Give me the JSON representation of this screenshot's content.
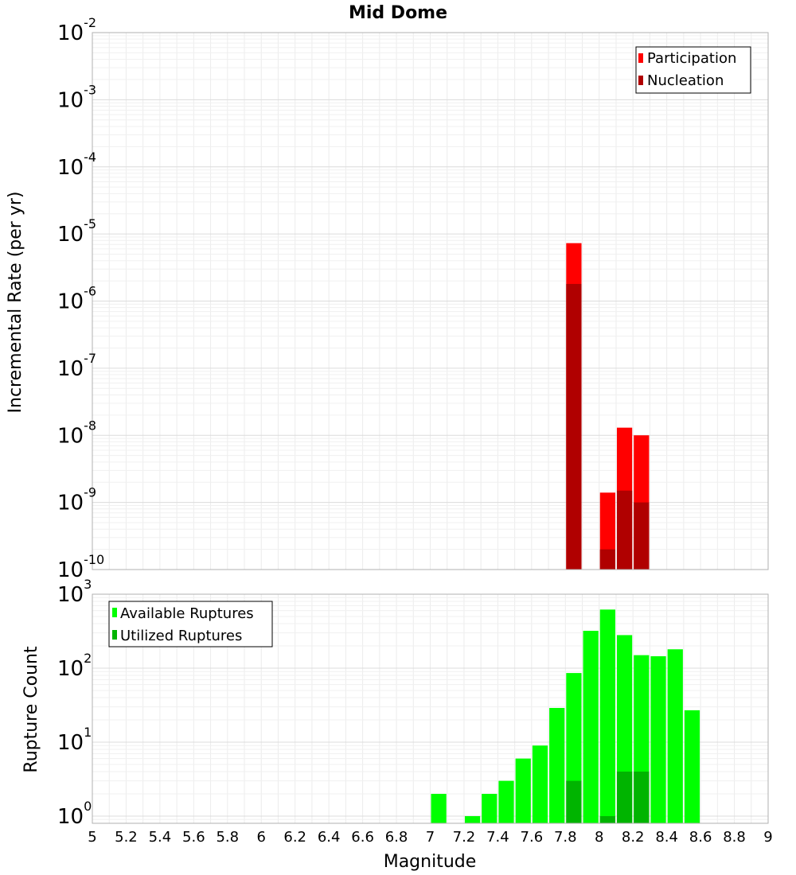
{
  "chart_data": [
    {
      "type": "bar",
      "title": "Mid Dome",
      "ylabel": "Incremental Rate (per yr)",
      "xlabel": "",
      "y_scale": "log",
      "ylim": [
        1e-10,
        0.01
      ],
      "xlim": [
        5,
        9
      ],
      "y_ticks": [
        {
          "base": "10",
          "exp": "-10"
        },
        {
          "base": "10",
          "exp": "-9"
        },
        {
          "base": "10",
          "exp": "-8"
        },
        {
          "base": "10",
          "exp": "-7"
        },
        {
          "base": "10",
          "exp": "-6"
        },
        {
          "base": "10",
          "exp": "-5"
        },
        {
          "base": "10",
          "exp": "-4"
        },
        {
          "base": "10",
          "exp": "-3"
        },
        {
          "base": "10",
          "exp": "-2"
        }
      ],
      "legend_position": "top-right",
      "grid": true,
      "series": [
        {
          "name": "Participation",
          "color": "#ff0000",
          "points": [
            {
              "x": 7.85,
              "y": 7.3e-06
            },
            {
              "x": 8.05,
              "y": 1.4e-09
            },
            {
              "x": 8.15,
              "y": 1.3e-08
            },
            {
              "x": 8.25,
              "y": 1e-08
            }
          ]
        },
        {
          "name": "Nucleation",
          "color": "#b00000",
          "points": [
            {
              "x": 7.85,
              "y": 1.8e-06
            },
            {
              "x": 8.05,
              "y": 2e-10
            },
            {
              "x": 8.15,
              "y": 1.5e-09
            },
            {
              "x": 8.25,
              "y": 1e-09
            }
          ]
        }
      ]
    },
    {
      "type": "bar",
      "title": "",
      "ylabel": "Rupture Count",
      "xlabel": "Magnitude",
      "y_scale": "log",
      "ylim": [
        0.8,
        1000
      ],
      "xlim": [
        5,
        9
      ],
      "x_ticks": [
        "5",
        "5.2",
        "5.4",
        "5.6",
        "5.8",
        "6",
        "6.2",
        "6.4",
        "6.6",
        "6.8",
        "7",
        "7.2",
        "7.4",
        "7.6",
        "7.8",
        "8",
        "8.2",
        "8.4",
        "8.6",
        "8.8",
        "9"
      ],
      "y_ticks": [
        {
          "base": "10",
          "exp": "0"
        },
        {
          "base": "10",
          "exp": "1"
        },
        {
          "base": "10",
          "exp": "2"
        },
        {
          "base": "10",
          "exp": "3"
        }
      ],
      "legend_position": "top-left",
      "grid": true,
      "series": [
        {
          "name": "Available Ruptures",
          "color": "#00ff00",
          "points": [
            {
              "x": 7.05,
              "y": 2
            },
            {
              "x": 7.25,
              "y": 1
            },
            {
              "x": 7.35,
              "y": 2
            },
            {
              "x": 7.45,
              "y": 3
            },
            {
              "x": 7.55,
              "y": 6
            },
            {
              "x": 7.65,
              "y": 9
            },
            {
              "x": 7.75,
              "y": 29
            },
            {
              "x": 7.85,
              "y": 86
            },
            {
              "x": 7.95,
              "y": 320
            },
            {
              "x": 8.05,
              "y": 620
            },
            {
              "x": 8.15,
              "y": 280
            },
            {
              "x": 8.25,
              "y": 150
            },
            {
              "x": 8.35,
              "y": 145
            },
            {
              "x": 8.45,
              "y": 180
            },
            {
              "x": 8.55,
              "y": 27
            }
          ]
        },
        {
          "name": "Utilized Ruptures",
          "color": "#00b400",
          "points": [
            {
              "x": 7.85,
              "y": 3
            },
            {
              "x": 8.05,
              "y": 1
            },
            {
              "x": 8.15,
              "y": 4
            },
            {
              "x": 8.25,
              "y": 4
            }
          ]
        }
      ]
    }
  ]
}
